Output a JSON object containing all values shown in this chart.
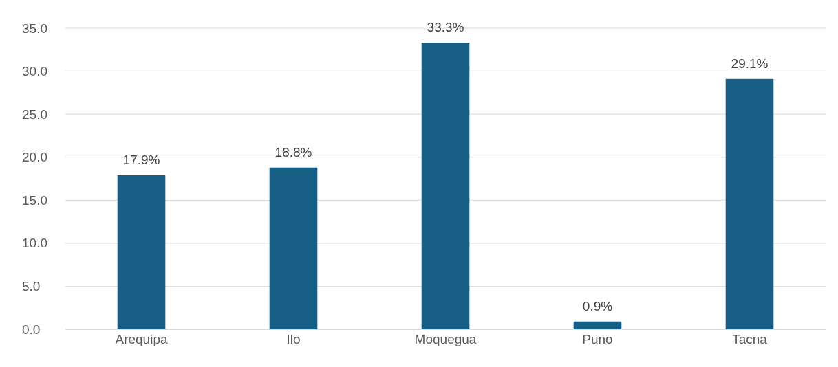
{
  "chart_data": {
    "type": "bar",
    "categories": [
      "Arequipa",
      "Ilo",
      "Moquegua",
      "Puno",
      "Tacna"
    ],
    "values": [
      17.9,
      18.8,
      33.3,
      0.9,
      29.1
    ],
    "value_labels": [
      "17.9%",
      "18.8%",
      "33.3%",
      "0.9%",
      "29.1%"
    ],
    "color": "#165e83",
    "ylim": [
      0,
      35
    ],
    "yticks": [
      {
        "value": 0,
        "label": "0.0"
      },
      {
        "value": 5,
        "label": "5.0"
      },
      {
        "value": 10,
        "label": "10.0"
      },
      {
        "value": 15,
        "label": "15.0"
      },
      {
        "value": 20,
        "label": "20.0"
      },
      {
        "value": 25,
        "label": "25.0"
      },
      {
        "value": 30,
        "label": "30.0"
      },
      {
        "value": 35,
        "label": "35.0"
      }
    ],
    "grid": "y"
  }
}
